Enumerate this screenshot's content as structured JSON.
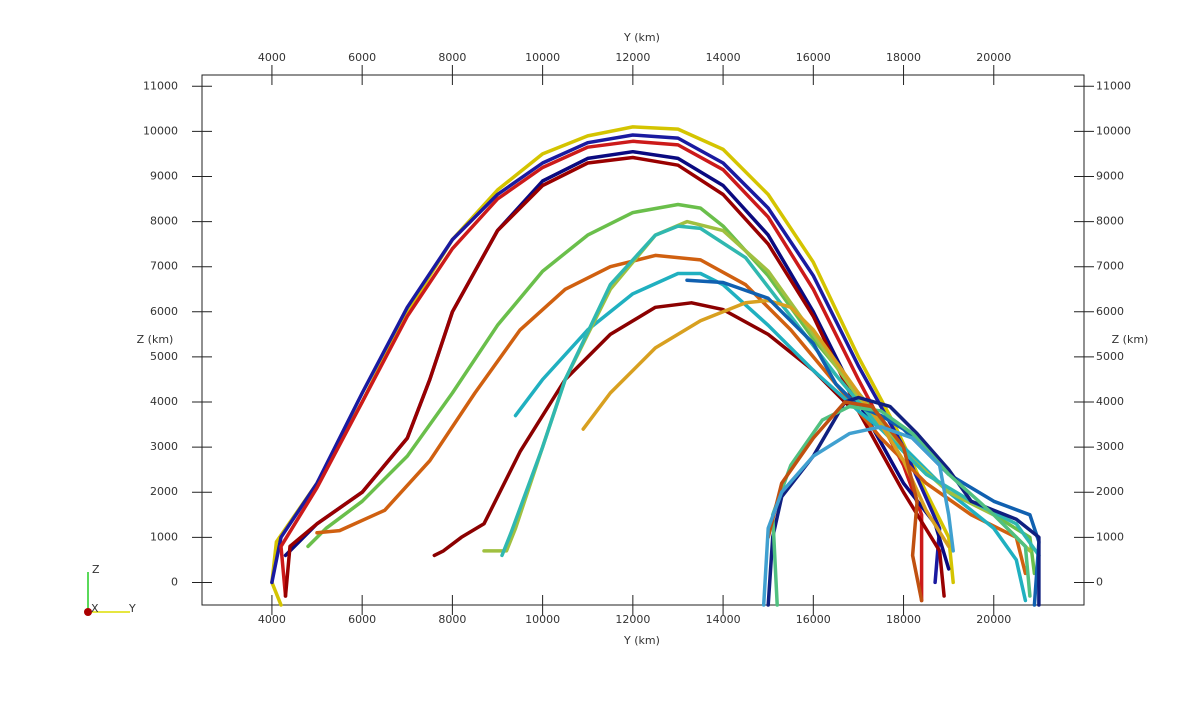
{
  "chart_data": {
    "type": "line",
    "x_label": "Y (km)",
    "y_label": "Z (km)",
    "xlim": [
      2450,
      22000
    ],
    "ylim": [
      -500,
      11250
    ],
    "xticks": [
      4000,
      6000,
      8000,
      10000,
      12000,
      14000,
      16000,
      18000,
      20000
    ],
    "yticks": [
      0,
      1000,
      2000,
      3000,
      4000,
      5000,
      6000,
      7000,
      8000,
      9000,
      10000,
      11000
    ],
    "grid": false,
    "triad_labels": [
      "Z",
      "X",
      "Y"
    ],
    "series": [
      {
        "color": "#d4c400",
        "x": [
          4200,
          4000,
          4100,
          5000,
          6000,
          7000,
          8000,
          9000,
          10000,
          11000,
          12000,
          13000,
          14000,
          15000,
          16000,
          17000,
          17800,
          18500,
          19000,
          19100
        ],
        "values": [
          -500,
          0,
          900,
          2200,
          4000,
          6000,
          7600,
          8700,
          9500,
          9900,
          10100,
          10050,
          9600,
          8600,
          7100,
          5000,
          3500,
          2000,
          1000,
          0
        ]
      },
      {
        "color": "#1a1aa0",
        "x": [
          4000,
          4200,
          5000,
          6000,
          7000,
          8000,
          9000,
          10000,
          11000,
          12000,
          13000,
          14000,
          15000,
          16000,
          17000,
          18000,
          18800,
          18700
        ],
        "values": [
          0,
          1000,
          2200,
          4200,
          6100,
          7600,
          8600,
          9300,
          9750,
          9920,
          9850,
          9300,
          8300,
          6800,
          4800,
          3000,
          1200,
          0
        ]
      },
      {
        "color": "#cc1a1a",
        "x": [
          4300,
          4200,
          5000,
          6000,
          7000,
          8000,
          9000,
          10000,
          11000,
          12000,
          13000,
          14000,
          15000,
          16000,
          17000,
          18000,
          18400,
          18400
        ],
        "values": [
          -300,
          800,
          2100,
          4000,
          5900,
          7400,
          8500,
          9200,
          9650,
          9780,
          9700,
          9150,
          8100,
          6500,
          4500,
          2600,
          1500,
          -400
        ]
      },
      {
        "color": "#0a0a80",
        "x": [
          4300,
          5000,
          6000,
          7000,
          7500,
          8000,
          9000,
          10000,
          11000,
          12000,
          13000,
          14000,
          15000,
          16000,
          17000,
          18000,
          18700,
          19000
        ],
        "values": [
          600,
          1300,
          2000,
          3200,
          4500,
          6000,
          7800,
          8900,
          9400,
          9550,
          9400,
          8800,
          7700,
          6000,
          4000,
          2200,
          1300,
          300
        ]
      },
      {
        "color": "#990000",
        "x": [
          4300,
          4400,
          5000,
          6000,
          7000,
          7500,
          8000,
          9000,
          10000,
          11000,
          12000,
          13000,
          14000,
          15000,
          16000,
          17000,
          18000,
          18800,
          18900
        ],
        "values": [
          -300,
          800,
          1300,
          2000,
          3200,
          4500,
          6000,
          7800,
          8800,
          9300,
          9420,
          9250,
          8600,
          7500,
          5900,
          3800,
          2000,
          700,
          -300
        ]
      },
      {
        "color": "#6abf4b",
        "x": [
          4800,
          5200,
          6000,
          7000,
          8000,
          9000,
          10000,
          11000,
          12000,
          13000,
          13500,
          14000,
          15000,
          16000,
          17000,
          18000,
          19000,
          20000,
          20800,
          20900
        ],
        "values": [
          800,
          1200,
          1800,
          2800,
          4200,
          5700,
          6900,
          7700,
          8200,
          8380,
          8300,
          7900,
          6800,
          5400,
          4200,
          3000,
          2000,
          1500,
          1000,
          200
        ]
      },
      {
        "color": "#d06010",
        "x": [
          5000,
          5500,
          6500,
          7500,
          8500,
          9500,
          10500,
          11500,
          12500,
          13500,
          14500,
          15500,
          16500,
          17500,
          18500,
          19500,
          20500,
          20700
        ],
        "values": [
          1100,
          1150,
          1600,
          2700,
          4200,
          5600,
          6500,
          7000,
          7250,
          7150,
          6600,
          5600,
          4400,
          3200,
          2200,
          1500,
          1000,
          200
        ]
      },
      {
        "color": "#8b0000",
        "x": [
          7600,
          7800,
          8200,
          8700,
          9500,
          10500,
          11500,
          12500,
          13300,
          14000,
          15000,
          16000,
          16800
        ],
        "values": [
          600,
          700,
          1000,
          1300,
          2900,
          4500,
          5500,
          6100,
          6200,
          6050,
          5500,
          4700,
          3900
        ]
      },
      {
        "color": "#20b0c0",
        "x": [
          9400,
          10000,
          11000,
          12000,
          13000,
          13500,
          14000,
          15000,
          16000,
          17000,
          18000,
          19000,
          20000,
          20500,
          20700
        ],
        "values": [
          3700,
          4500,
          5600,
          6400,
          6850,
          6850,
          6600,
          5700,
          4700,
          3800,
          3000,
          2000,
          1200,
          500,
          -400
        ]
      },
      {
        "color": "#a0c040",
        "x": [
          8700,
          9200,
          9400,
          10000,
          10500,
          11500,
          12500,
          13200,
          14000,
          15000,
          16000,
          17000,
          18000,
          19000,
          20000,
          20800
        ],
        "values": [
          700,
          700,
          1200,
          3000,
          4500,
          6500,
          7700,
          8000,
          7800,
          6900,
          5500,
          4100,
          2900,
          2000,
          1500,
          700
        ]
      },
      {
        "color": "#30b8b0",
        "x": [
          9100,
          9300,
          10000,
          10500,
          11500,
          12500,
          13000,
          13500,
          14500,
          15500,
          16500,
          17500,
          18500,
          19500,
          20500,
          21000
        ],
        "values": [
          600,
          1100,
          3000,
          4500,
          6600,
          7700,
          7900,
          7850,
          7200,
          5900,
          4600,
          3400,
          2400,
          1800,
          1300,
          600
        ]
      },
      {
        "color": "#d8a020",
        "x": [
          10900,
          11500,
          12500,
          13500,
          14500,
          15000,
          15500,
          16000,
          16500,
          17000,
          17500,
          18000,
          18500,
          19000
        ],
        "values": [
          3400,
          4200,
          5200,
          5800,
          6200,
          6250,
          6100,
          5600,
          4900,
          4200,
          3500,
          2700,
          1600,
          800
        ]
      },
      {
        "color": "#1060b0",
        "x": [
          13200,
          14000,
          15000,
          16000,
          16500,
          17000,
          17500,
          18000,
          19000,
          20000,
          20800,
          21000,
          20900
        ],
        "values": [
          6700,
          6650,
          6300,
          5300,
          4400,
          3900,
          3700,
          3400,
          2400,
          1800,
          1500,
          900,
          -500
        ]
      },
      {
        "color": "#102080",
        "x": [
          15000,
          15100,
          15300,
          16000,
          16700,
          17000,
          17700,
          18300,
          19000,
          19500,
          20500,
          21000,
          21000
        ],
        "values": [
          -500,
          1000,
          1900,
          2800,
          4000,
          4100,
          3900,
          3300,
          2500,
          1800,
          1400,
          1000,
          -500
        ]
      },
      {
        "color": "#50c080",
        "x": [
          15200,
          15100,
          15500,
          16200,
          16800,
          17500,
          18200,
          19000,
          20000,
          20700,
          20800
        ],
        "values": [
          -500,
          1500,
          2600,
          3600,
          3900,
          3800,
          3300,
          2400,
          1500,
          800,
          -300
        ]
      },
      {
        "color": "#c05010",
        "x": [
          15000,
          15300,
          16000,
          16700,
          17300,
          18000,
          18300,
          18200,
          18400
        ],
        "values": [
          1000,
          2200,
          3200,
          4000,
          3900,
          3000,
          1800,
          600,
          -400
        ]
      },
      {
        "color": "#40a0d0",
        "x": [
          14900,
          15000,
          15300,
          16000,
          16800,
          17500,
          18200,
          18800,
          19000,
          19100
        ],
        "values": [
          -500,
          1200,
          2000,
          2800,
          3300,
          3450,
          3200,
          2600,
          1500,
          700
        ]
      }
    ]
  }
}
